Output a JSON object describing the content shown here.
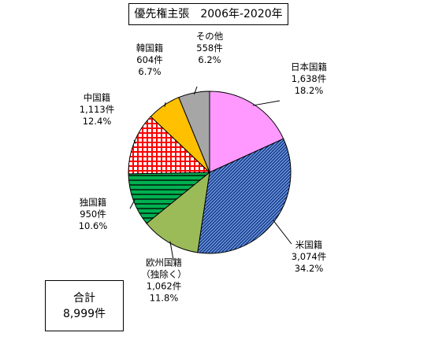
{
  "title": "優先権主張　2006年-2020年",
  "total": {
    "label": "合計",
    "value": "8,999件"
  },
  "chart_data": {
    "type": "pie",
    "title": "優先権主張　2006年-2020年",
    "start_angle": "12 o'clock, clockwise",
    "slices": [
      {
        "label": "日本国籍",
        "count": 1638,
        "count_text": "1,638件",
        "percent": 18.2,
        "percent_text": "18.2%",
        "color": "#ff99ff",
        "pattern": "solid"
      },
      {
        "label": "米国籍",
        "count": 3074,
        "count_text": "3,074件",
        "percent": 34.2,
        "percent_text": "34.2%",
        "color": "#2e67b1",
        "pattern": "diagonal-hatch"
      },
      {
        "label": "欧州国籍",
        "label2": "（独除く）",
        "count": 1062,
        "count_text": "1,062件",
        "percent": 11.8,
        "percent_text": "11.8%",
        "color": "#9bbb59",
        "pattern": "solid"
      },
      {
        "label": "独国籍",
        "count": 950,
        "count_text": "950件",
        "percent": 10.6,
        "percent_text": "10.6%",
        "color": "#00b050",
        "pattern": "horizontal-stripes"
      },
      {
        "label": "中国籍",
        "count": 1113,
        "count_text": "1,113件",
        "percent": 12.4,
        "percent_text": "12.4%",
        "color": "#ff0000",
        "pattern": "grid"
      },
      {
        "label": "韓国籍",
        "count": 604,
        "count_text": "604件",
        "percent": 6.7,
        "percent_text": "6.7%",
        "color": "#ffc000",
        "pattern": "solid"
      },
      {
        "label": "その他",
        "count": 558,
        "count_text": "558件",
        "percent": 6.2,
        "percent_text": "6.2%",
        "color": "#a6a6a6",
        "pattern": "solid"
      }
    ]
  }
}
